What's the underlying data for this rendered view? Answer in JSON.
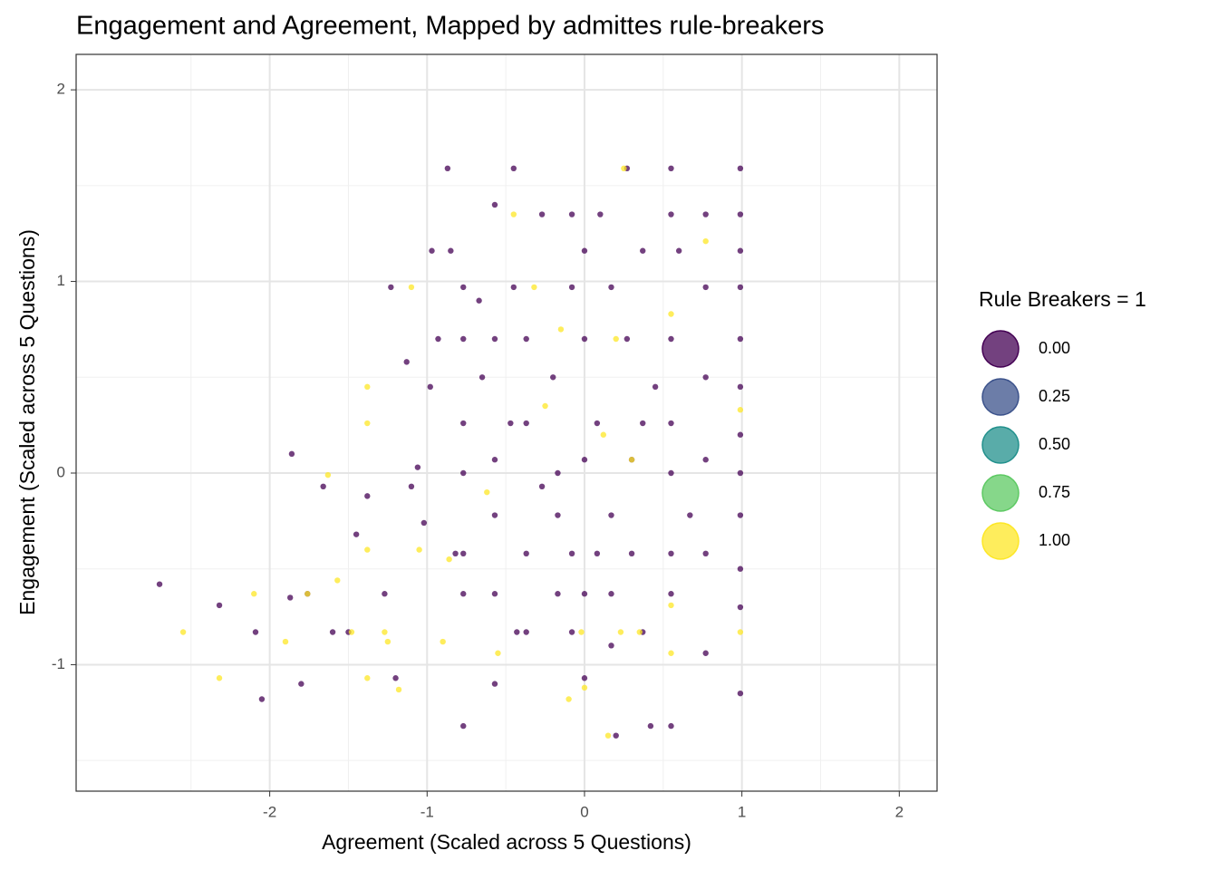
{
  "chart_data": {
    "type": "scatter",
    "title": "Engagement and Agreement, Mapped by admittes rule-breakers",
    "x_label": "Agreement (Scaled across 5 Questions)",
    "y_label": "Engagement (Scaled across 5 Questions)",
    "xlim": [
      -3.23,
      2.24
    ],
    "ylim": [
      -1.66,
      2.185
    ],
    "xticks": [
      -2,
      -1,
      0,
      1,
      2
    ],
    "yticks": [
      2,
      1,
      0,
      -1
    ],
    "grid": true,
    "legend": {
      "title": "Rule Breakers = 1",
      "position": "right",
      "colors": [
        "#440154",
        "#3b528b",
        "#21908c",
        "#5dc963",
        "#fde725"
      ],
      "ticks": [
        {
          "value": 0,
          "label": "0.00"
        },
        {
          "value": 0.25,
          "label": "0.25"
        },
        {
          "value": 0.5,
          "label": "0.50"
        },
        {
          "value": 0.75,
          "label": "0.75"
        },
        {
          "value": 1,
          "label": "1.00"
        }
      ]
    },
    "x": [
      -2.7,
      -2.32,
      -2.09,
      -2.05,
      -1.86,
      -1.87,
      -1.8,
      -1.76,
      -1.66,
      -1.6,
      -1.5,
      -1.45,
      -1.38,
      -1.27,
      -1.23,
      -1.2,
      -1.13,
      -1.1,
      -1.06,
      -1.02,
      -0.98,
      -0.97,
      -0.93,
      -0.87,
      -0.85,
      -0.82,
      -0.77,
      -0.77,
      -0.77,
      -0.77,
      -0.77,
      -0.77,
      -0.77,
      -0.67,
      -0.65,
      -0.57,
      -0.57,
      -0.57,
      -0.57,
      -0.57,
      -0.57,
      -0.45,
      -0.45,
      -0.43,
      -0.37,
      -0.37,
      -0.37,
      -0.37,
      -0.27,
      -0.2,
      -0.17,
      -0.17,
      -0.17,
      -0.08,
      -0.08,
      -0.08,
      -0.08,
      0,
      0,
      0,
      0,
      0,
      0.08,
      0.1,
      0.17,
      0.17,
      0.17,
      0.17,
      0.2,
      0.27,
      0.27,
      0.3,
      0.3,
      0.37,
      0.37,
      0.37,
      0.42,
      0.55,
      0.55,
      0.55,
      0.55,
      0.55,
      0.55,
      0.55,
      0.55,
      0.6,
      0.77,
      0.77,
      0.77,
      0.77,
      0.77,
      0.77,
      0.99,
      0.99,
      0.99,
      0.99,
      0.99,
      0.99,
      0.99,
      0.99,
      0.99,
      0.99,
      0.99,
      0.99,
      0.45,
      -0.27,
      0.08,
      -0.47,
      0.67,
      -2.55,
      -2.32,
      -2.1,
      -1.9,
      -1.76,
      -1.63,
      -1.57,
      -1.48,
      -1.38,
      -1.38,
      -1.38,
      -1.38,
      -1.27,
      -1.25,
      -1.18,
      -1.1,
      -1.05,
      -0.9,
      -0.86,
      -0.55,
      -0.45,
      -0.32,
      -0.25,
      -0.15,
      -0.1,
      -0.02,
      0,
      0.12,
      0.15,
      0.2,
      0.23,
      0.25,
      0.35,
      0.55,
      0.55,
      0.55,
      0.77,
      0.99,
      0.99,
      -0.62,
      0.3
    ],
    "y": [
      -0.58,
      -0.69,
      -0.83,
      -1.18,
      0.1,
      -0.65,
      -1.1,
      -0.63,
      -0.07,
      -0.83,
      -0.83,
      -0.32,
      -0.12,
      -0.63,
      0.97,
      -1.07,
      0.58,
      -0.07,
      0.03,
      -0.26,
      0.45,
      1.16,
      0.7,
      1.59,
      1.16,
      -0.42,
      0.97,
      0.7,
      0.26,
      0,
      -0.42,
      -0.63,
      -1.32,
      0.9,
      0.5,
      1.4,
      0.7,
      0.07,
      -0.22,
      -0.63,
      -1.1,
      1.59,
      0.97,
      -0.83,
      0.7,
      0.26,
      -0.42,
      -0.83,
      1.35,
      0.5,
      0,
      -0.22,
      -0.63,
      1.35,
      0.97,
      -0.42,
      -0.83,
      1.16,
      0.7,
      0.07,
      -0.63,
      -1.07,
      0.26,
      1.35,
      0.97,
      -0.22,
      -0.63,
      -0.9,
      -1.37,
      1.59,
      0.7,
      0.07,
      -0.42,
      1.16,
      0.26,
      -0.83,
      -1.32,
      1.59,
      1.35,
      0.7,
      0.26,
      0,
      -0.42,
      -0.63,
      -1.32,
      1.16,
      1.35,
      0.97,
      0.5,
      0.07,
      -0.42,
      -0.94,
      1.59,
      1.35,
      1.16,
      0.97,
      0.7,
      0.45,
      0.2,
      0,
      -0.22,
      -0.5,
      -0.7,
      -1.15,
      0.45,
      -0.07,
      -0.42,
      0.26,
      -0.22,
      -0.83,
      -1.07,
      -0.63,
      -0.88,
      -0.63,
      -0.01,
      -0.56,
      -0.83,
      0.45,
      0.26,
      -0.4,
      -1.07,
      -0.83,
      -0.88,
      -1.13,
      0.97,
      -0.4,
      -0.88,
      -0.45,
      -0.94,
      1.35,
      0.97,
      0.35,
      0.75,
      -1.18,
      -0.83,
      -1.12,
      0.2,
      -1.37,
      0.7,
      -0.83,
      1.59,
      -0.83,
      0.83,
      -0.69,
      -0.94,
      1.21,
      0.33,
      -0.83,
      -0.1,
      0.07
    ],
    "z": [
      0,
      0,
      0,
      0,
      0,
      0,
      0,
      0,
      0,
      0,
      0,
      0,
      0,
      0,
      0,
      0,
      0,
      0,
      0,
      0,
      0,
      0,
      0,
      0,
      0,
      0,
      0,
      0,
      0,
      0,
      0,
      0,
      0,
      0,
      0,
      0,
      0,
      0,
      0,
      0,
      0,
      0,
      0,
      0,
      0,
      0,
      0,
      0,
      0,
      0,
      0,
      0,
      0,
      0,
      0,
      0,
      0,
      0,
      0,
      0,
      0,
      0,
      0,
      0,
      0,
      0,
      0,
      0,
      0,
      0,
      0,
      0,
      0,
      0,
      0,
      0,
      0,
      0,
      0,
      0,
      0,
      0,
      0,
      0,
      0,
      0,
      0,
      0,
      0,
      0,
      0,
      0,
      0,
      0,
      0,
      0,
      0,
      0,
      0,
      0,
      0,
      0,
      0,
      0,
      0,
      0,
      0,
      0,
      0,
      1,
      1,
      1,
      1,
      1,
      1,
      1,
      1,
      1,
      1,
      1,
      1,
      1,
      1,
      1,
      1,
      1,
      1,
      1,
      1,
      1,
      1,
      1,
      1,
      1,
      1,
      1,
      1,
      1,
      1,
      1,
      1,
      1,
      1,
      1,
      1,
      1,
      1,
      1,
      1,
      1
    ]
  }
}
